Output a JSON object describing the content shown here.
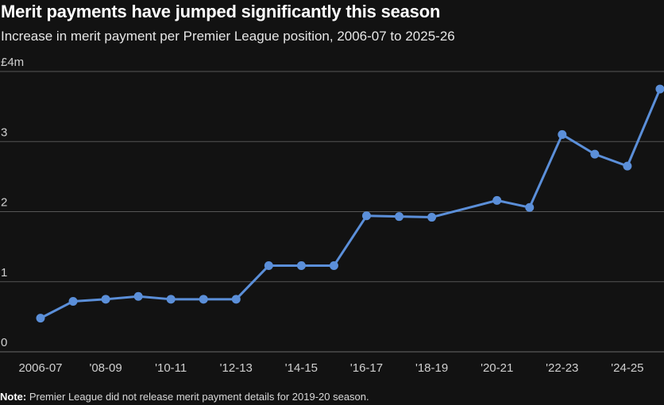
{
  "chart_data": {
    "type": "line",
    "title": "Merit payments have jumped significantly this season",
    "subtitle": "Increase in merit payment per Premier League position, 2006-07 to 2025-26",
    "x_tick_labels": [
      "2006-07",
      "'08-09",
      "'10-11",
      "'12-13",
      "'14-15",
      "'16-17",
      "'18-19",
      "'20-21",
      "'22-23",
      "'24-25"
    ],
    "y_tick_labels": [
      "0",
      "1",
      "2",
      "3",
      "£4m"
    ],
    "ylim": [
      0,
      4
    ],
    "grid": true,
    "series": [
      {
        "color": "#5b8fd9",
        "points": [
          {
            "season": "2006-07",
            "value": 0.48
          },
          {
            "season": "2007-08",
            "value": 0.72
          },
          {
            "season": "2008-09",
            "value": 0.75
          },
          {
            "season": "2009-10",
            "value": 0.79
          },
          {
            "season": "2010-11",
            "value": 0.75
          },
          {
            "season": "2011-12",
            "value": 0.75
          },
          {
            "season": "2012-13",
            "value": 0.75
          },
          {
            "season": "2013-14",
            "value": 1.23
          },
          {
            "season": "2014-15",
            "value": 1.23
          },
          {
            "season": "2015-16",
            "value": 1.23
          },
          {
            "season": "2016-17",
            "value": 1.94
          },
          {
            "season": "2017-18",
            "value": 1.93
          },
          {
            "season": "2018-19",
            "value": 1.92
          },
          {
            "season": "2020-21",
            "value": 2.16
          },
          {
            "season": "2021-22",
            "value": 2.06
          },
          {
            "season": "2022-23",
            "value": 3.1
          },
          {
            "season": "2023-24",
            "value": 2.82
          },
          {
            "season": "2024-25",
            "value": 2.65
          },
          {
            "season": "2025-26",
            "value": 3.75
          }
        ]
      }
    ]
  },
  "note": {
    "label": "Note:",
    "text": " Premier League did not release merit payment details for 2019-20 season."
  },
  "colors": {
    "background": "#121212",
    "gridline": "#555555",
    "line": "#5b8fd9"
  }
}
